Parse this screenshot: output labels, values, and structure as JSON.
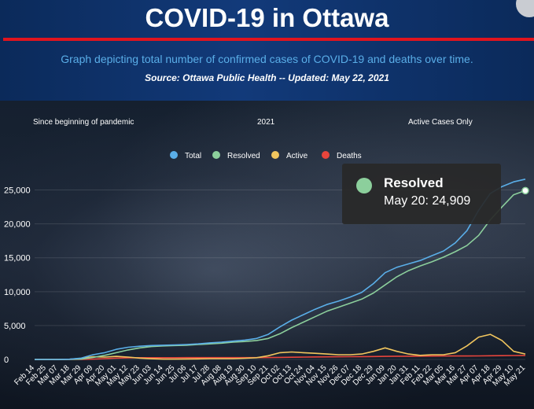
{
  "header": {
    "title": "COVID-19 in Ottawa",
    "subtitle": "Graph depicting total number of confirmed cases of COVID-19 and deaths over time.",
    "source": "Source:  Ottawa Public Health -- Updated:  May 22, 2021"
  },
  "tabs": [
    "Since beginning of pandemic",
    "2021",
    "Active Cases Only"
  ],
  "colors": {
    "total": "#5aaee8",
    "resolved": "#8ccf9c",
    "active": "#f2c65e",
    "deaths": "#e8453c",
    "accent_red": "#e0141e"
  },
  "tooltip": {
    "series": "Resolved",
    "text": "May 20: 24,909"
  },
  "chart_data": {
    "type": "line",
    "x": [
      "Feb 14",
      "Feb 25",
      "Mar 07",
      "Mar 18",
      "Mar 29",
      "Apr 09",
      "Apr 20",
      "May 01",
      "May 12",
      "May 23",
      "Jun 03",
      "Jun 14",
      "Jun 25",
      "Jul 06",
      "Jul 17",
      "Jul 28",
      "Aug 08",
      "Aug 19",
      "Aug 30",
      "Sep 10",
      "Sep 21",
      "Oct 02",
      "Oct 13",
      "Oct 24",
      "Nov 04",
      "Nov 15",
      "Nov 26",
      "Dec 07",
      "Dec 18",
      "Dec 29",
      "Jan 09",
      "Jan 20",
      "Jan 31",
      "Feb 11",
      "Feb 22",
      "Mar 05",
      "Mar 16",
      "Mar 27",
      "Apr 07",
      "Apr 18",
      "Apr 29",
      "May 10",
      "May 21"
    ],
    "ylim": [
      0,
      27500
    ],
    "yticks": [
      0,
      5000,
      10000,
      15000,
      20000,
      25000
    ],
    "ytick_labels": [
      "0",
      "5,000",
      "10,000",
      "15,000",
      "20,000",
      "25,000"
    ],
    "legend_position": "top-center",
    "series": [
      {
        "name": "Total",
        "color": "#5aaee8",
        "values": [
          0,
          0,
          0,
          30,
          200,
          700,
          1000,
          1500,
          1800,
          1950,
          2050,
          2100,
          2150,
          2200,
          2300,
          2450,
          2550,
          2700,
          2850,
          3100,
          3700,
          4800,
          5800,
          6600,
          7400,
          8100,
          8600,
          9200,
          9900,
          11200,
          12800,
          13600,
          14100,
          14600,
          15300,
          16000,
          17200,
          19000,
          22000,
          24500,
          25500,
          26200,
          26600
        ]
      },
      {
        "name": "Resolved",
        "color": "#8ccf9c",
        "values": [
          0,
          0,
          0,
          0,
          50,
          300,
          600,
          1000,
          1400,
          1700,
          1900,
          2000,
          2050,
          2100,
          2200,
          2300,
          2400,
          2550,
          2650,
          2800,
          3100,
          3800,
          4700,
          5500,
          6300,
          7100,
          7700,
          8300,
          8900,
          9800,
          11000,
          12200,
          13100,
          13800,
          14400,
          15100,
          15900,
          16800,
          18300,
          20600,
          22500,
          24300,
          24909
        ]
      },
      {
        "name": "Active",
        "color": "#f2c65e",
        "values": [
          0,
          0,
          0,
          30,
          150,
          400,
          350,
          450,
          350,
          200,
          100,
          50,
          50,
          70,
          80,
          120,
          120,
          120,
          170,
          250,
          550,
          1000,
          1100,
          1000,
          900,
          800,
          700,
          700,
          800,
          1200,
          1700,
          1200,
          800,
          600,
          700,
          700,
          1000,
          2000,
          3300,
          3700,
          2800,
          1200,
          800
        ]
      },
      {
        "name": "Deaths",
        "color": "#e8453c",
        "values": [
          0,
          0,
          0,
          0,
          10,
          50,
          120,
          200,
          240,
          250,
          255,
          260,
          260,
          262,
          262,
          263,
          264,
          264,
          266,
          268,
          275,
          300,
          330,
          350,
          370,
          385,
          395,
          405,
          415,
          430,
          450,
          470,
          480,
          490,
          500,
          505,
          510,
          515,
          525,
          540,
          560,
          580,
          590
        ]
      }
    ],
    "tooltip_point": {
      "series": "Resolved",
      "x": "May 20",
      "y": 24909
    }
  }
}
